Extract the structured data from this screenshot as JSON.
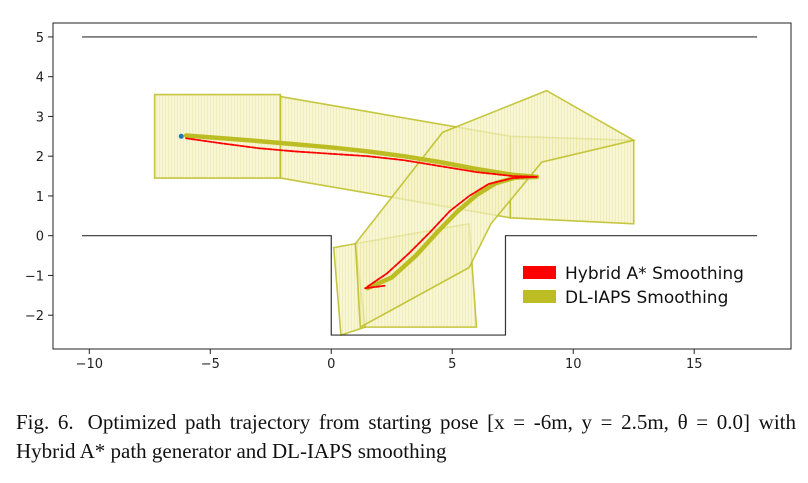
{
  "colors": {
    "hybrid": "#ff0000",
    "dl_iaps": "#bcbd22",
    "corridor_fill": "#f5f3c4",
    "corridor_edge": "#c9c66a",
    "start_point": "#1f77b4",
    "boundary": "#333333"
  },
  "chart_data": {
    "type": "line",
    "xlim": [
      -11.5,
      19
    ],
    "ylim": [
      -2.85,
      5.35
    ],
    "xticks": [
      -10,
      -5,
      0,
      5,
      10,
      15
    ],
    "yticks": [
      -2,
      -1,
      0,
      1,
      2,
      3,
      4,
      5
    ],
    "xtick_labels": [
      "−10",
      "−5",
      "0",
      "5",
      "10",
      "15"
    ],
    "ytick_labels": [
      "−2",
      "−1",
      "0",
      "1",
      "2",
      "3",
      "4",
      "5"
    ],
    "grid": false,
    "legend_position": "lower-right",
    "start_point": [
      -6.2,
      2.5
    ],
    "boundaries": [
      {
        "x": [
          -10.3,
          17.6
        ],
        "y": [
          5.0,
          5.0
        ]
      },
      {
        "x": [
          -10.3,
          0.0,
          0.0,
          7.2,
          7.2,
          17.6
        ],
        "y": [
          0.0,
          0.0,
          -2.5,
          -2.5,
          0.0,
          0.0
        ]
      }
    ],
    "corridors": [
      {
        "x": [
          -7.3,
          -2.1,
          -2.1,
          -7.3
        ],
        "y": [
          3.55,
          3.55,
          1.45,
          1.45
        ]
      },
      {
        "x": [
          -2.1,
          7.4,
          7.4,
          -2.1
        ],
        "y": [
          3.5,
          2.5,
          0.45,
          1.45
        ]
      },
      {
        "x": [
          7.4,
          12.5,
          12.5,
          7.4
        ],
        "y": [
          2.5,
          2.4,
          0.3,
          0.45
        ]
      },
      {
        "x": [
          1.0,
          5.7,
          6.0,
          1.3
        ],
        "y": [
          -0.2,
          0.3,
          -2.3,
          -2.3
        ]
      },
      {
        "x": [
          0.1,
          1.0,
          1.4,
          0.4
        ],
        "y": [
          -0.3,
          -0.2,
          -2.3,
          -2.5
        ]
      },
      {
        "x": [
          1.0,
          4.6,
          8.9,
          12.5,
          8.7,
          6.6,
          5.7,
          1.2
        ],
        "y": [
          -0.2,
          2.6,
          3.65,
          2.4,
          1.85,
          0.3,
          -0.8,
          -2.3
        ]
      }
    ],
    "series": [
      {
        "name": "Hybrid A* Smoothing",
        "x": [
          -6.0,
          -4.5,
          -3.0,
          -1.5,
          0.0,
          1.5,
          3.0,
          4.5,
          6.0,
          7.5,
          8.5
        ],
        "y": [
          2.45,
          2.32,
          2.2,
          2.12,
          2.06,
          2.0,
          1.9,
          1.75,
          1.6,
          1.5,
          1.48
        ]
      },
      {
        "name": "DL-IAPS Smoothing",
        "x": [
          -6.0,
          -4.5,
          -3.0,
          -1.5,
          0.0,
          1.5,
          3.0,
          4.5,
          6.0,
          7.5,
          8.5
        ],
        "y": [
          2.52,
          2.45,
          2.38,
          2.3,
          2.22,
          2.12,
          2.0,
          1.85,
          1.68,
          1.53,
          1.48
        ]
      },
      {
        "name": "Hybrid A* Smoothing",
        "x": [
          1.5,
          2.3,
          3.2,
          4.1,
          4.9,
          5.7,
          6.5,
          7.5,
          8.5
        ],
        "y": [
          -1.28,
          -0.95,
          -0.45,
          0.1,
          0.62,
          1.0,
          1.3,
          1.45,
          1.48
        ]
      },
      {
        "name": "DL-IAPS Smoothing",
        "x": [
          1.5,
          2.5,
          3.5,
          4.4,
          5.2,
          6.0,
          6.8,
          7.6,
          8.5
        ],
        "y": [
          -1.32,
          -1.05,
          -0.5,
          0.1,
          0.6,
          1.02,
          1.32,
          1.46,
          1.48
        ]
      },
      {
        "name": "Hybrid A* Smoothing",
        "x": [
          1.4,
          2.2
        ],
        "y": [
          -1.32,
          -1.26
        ]
      }
    ]
  },
  "legend": {
    "items": [
      {
        "label": "Hybrid A* Smoothing",
        "color": "#ff0000"
      },
      {
        "label": "DL-IAPS Smoothing",
        "color": "#bcbd22"
      }
    ]
  },
  "caption": {
    "label": "Fig. 6.",
    "text": "Optimized path trajectory from starting pose [x = -6m, y = 2.5m, θ = 0.0] with Hybrid A* path generator and DL-IAPS smoothing"
  }
}
